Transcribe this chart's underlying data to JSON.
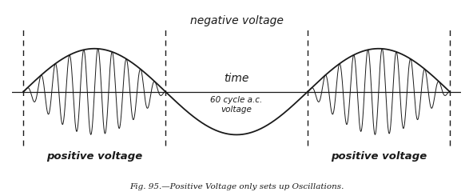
{
  "title": "Fig. 95.—Positive Voltage only sets up Oscillations.",
  "negative_voltage_label": "negative voltage",
  "positive_voltage_label_left": "positive voltage",
  "positive_voltage_label_right": "positive voltage",
  "time_label": "time",
  "ac_label": "60 cycle a.c.\nvoltage",
  "bg_color": "#ffffff",
  "line_color": "#1a1a1a",
  "envelope_color": "#1a1a1a",
  "dashed_color": "#1a1a1a",
  "osc_freq_ratio": 10,
  "fig_width": 5.92,
  "fig_height": 2.4,
  "dpi": 100
}
